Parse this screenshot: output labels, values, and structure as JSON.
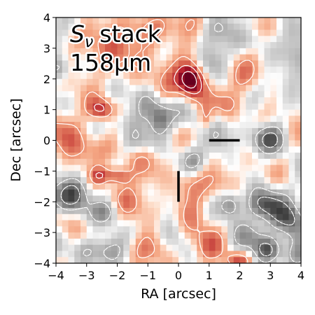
{
  "chart_data": {
    "type": "heatmap",
    "title_line1_symbol": "S",
    "title_line1_subscript": "ν",
    "title_line1_rest": "stack",
    "title_line2": "158μm",
    "xlabel": "RA [arcsec]",
    "ylabel": "Dec [arcsec]",
    "xlim": [
      -4,
      4
    ],
    "ylim": [
      -4,
      4
    ],
    "x_ticks": [
      -4,
      -3,
      -2,
      -1,
      0,
      1,
      2,
      3,
      4
    ],
    "y_ticks": [
      -4,
      -3,
      -2,
      -1,
      0,
      1,
      2,
      3,
      4
    ],
    "x_tick_labels": [
      "−4",
      "−3",
      "−2",
      "−1",
      "0",
      "1",
      "2",
      "3",
      "4"
    ],
    "y_tick_labels": [
      "−4",
      "−3",
      "−2",
      "−1",
      "0",
      "1",
      "2",
      "3",
      "4"
    ],
    "colormap": "RdGy_r",
    "grid": false,
    "positive_contours": "solid white",
    "negative_contours": "dashed white",
    "blobs": [
      {
        "x": 0.4,
        "y": 2.0,
        "amp": 3.4,
        "sx": 0.28,
        "sy": 0.38
      },
      {
        "x": -0.3,
        "y": 1.7,
        "amp": 1.1,
        "sx": 0.7,
        "sy": 0.6
      },
      {
        "x": -2.5,
        "y": 1.0,
        "amp": 2.3,
        "sx": 0.3,
        "sy": 0.25
      },
      {
        "x": -2.0,
        "y": -1.15,
        "amp": 2.1,
        "sx": 0.3,
        "sy": 0.2
      },
      {
        "x": -2.6,
        "y": -1.15,
        "amp": 1.6,
        "sx": 0.22,
        "sy": 0.2
      },
      {
        "x": 0.9,
        "y": 0.7,
        "amp": 1.6,
        "sx": 0.18,
        "sy": 0.3
      },
      {
        "x": -2.0,
        "y": 3.3,
        "amp": 1.8,
        "sx": 0.6,
        "sy": 0.45
      },
      {
        "x": 0.3,
        "y": 3.8,
        "amp": 1.6,
        "sx": 0.6,
        "sy": 0.35
      },
      {
        "x": 2.3,
        "y": 3.6,
        "amp": 1.2,
        "sx": 0.4,
        "sy": 0.3
      },
      {
        "x": 2.0,
        "y": 2.0,
        "amp": 1.1,
        "sx": 0.4,
        "sy": 0.4
      },
      {
        "x": 1.5,
        "y": 1.2,
        "amp": 0.9,
        "sx": 0.4,
        "sy": 0.3
      },
      {
        "x": -3.7,
        "y": 0.2,
        "amp": 1.1,
        "sx": 0.4,
        "sy": 0.6
      },
      {
        "x": -3.0,
        "y": -0.3,
        "amp": 1.0,
        "sx": 0.5,
        "sy": 0.4
      },
      {
        "x": -1.2,
        "y": -0.5,
        "amp": 0.8,
        "sx": 0.5,
        "sy": 0.4
      },
      {
        "x": -1.5,
        "y": -2.0,
        "amp": 1.2,
        "sx": 0.5,
        "sy": 0.5
      },
      {
        "x": -0.8,
        "y": -3.5,
        "amp": 1.0,
        "sx": 0.5,
        "sy": 0.4
      },
      {
        "x": 0.5,
        "y": -2.5,
        "amp": 1.2,
        "sx": 0.4,
        "sy": 0.5
      },
      {
        "x": 1.0,
        "y": -3.5,
        "amp": 1.1,
        "sx": 0.4,
        "sy": 0.4
      },
      {
        "x": 1.9,
        "y": -3.9,
        "amp": 1.8,
        "sx": 0.3,
        "sy": 0.2
      },
      {
        "x": 1.5,
        "y": -1.3,
        "amp": 0.9,
        "sx": 0.5,
        "sy": 0.35
      },
      {
        "x": 3.3,
        "y": 2.5,
        "amp": 0.8,
        "sx": 0.4,
        "sy": 0.4
      },
      {
        "x": 3.7,
        "y": 1.0,
        "amp": 0.6,
        "sx": 0.3,
        "sy": 0.5
      },
      {
        "x": -3.0,
        "y": 2.3,
        "amp": 0.8,
        "sx": 0.5,
        "sy": 0.4
      },
      {
        "x": -1.0,
        "y": 2.7,
        "amp": 0.7,
        "sx": 0.4,
        "sy": 0.4
      },
      {
        "x": -3.6,
        "y": -2.5,
        "amp": 0.7,
        "sx": 0.4,
        "sy": 0.4
      },
      {
        "x": 0.3,
        "y": -1.4,
        "amp": 0.8,
        "sx": 0.35,
        "sy": 0.4
      },
      {
        "x": -1.0,
        "y": 1.2,
        "amp": -1.7,
        "sx": 0.35,
        "sy": 0.4
      },
      {
        "x": -0.6,
        "y": 0.7,
        "amp": -1.9,
        "sx": 0.25,
        "sy": 0.35
      },
      {
        "x": 1.3,
        "y": 3.7,
        "amp": -1.6,
        "sx": 0.5,
        "sy": 0.4
      },
      {
        "x": 2.5,
        "y": 3.5,
        "amp": -0.9,
        "sx": 0.4,
        "sy": 0.3
      },
      {
        "x": 3.8,
        "y": 2.8,
        "amp": -1.2,
        "sx": 0.4,
        "sy": 0.4
      },
      {
        "x": 3.5,
        "y": 1.8,
        "amp": -0.9,
        "sx": 0.4,
        "sy": 0.5
      },
      {
        "x": -3.9,
        "y": 2.3,
        "amp": -1.6,
        "sx": 0.25,
        "sy": 0.3
      },
      {
        "x": -3.7,
        "y": -1.9,
        "amp": -1.9,
        "sx": 0.45,
        "sy": 0.4
      },
      {
        "x": -3.4,
        "y": -1.6,
        "amp": -1.2,
        "sx": 0.35,
        "sy": 0.35
      },
      {
        "x": -2.3,
        "y": -2.3,
        "amp": -1.6,
        "sx": 0.35,
        "sy": 0.3
      },
      {
        "x": -2.3,
        "y": -3.6,
        "amp": -1.3,
        "sx": 0.35,
        "sy": 0.3
      },
      {
        "x": -3.0,
        "y": -3.5,
        "amp": -0.9,
        "sx": 0.3,
        "sy": 0.3
      },
      {
        "x": -1.4,
        "y": -0.1,
        "amp": -0.9,
        "sx": 0.4,
        "sy": 0.3
      },
      {
        "x": 0.5,
        "y": -0.7,
        "amp": -1.0,
        "sx": 0.3,
        "sy": 0.3
      },
      {
        "x": 1.3,
        "y": 0.0,
        "amp": -0.9,
        "sx": 0.3,
        "sy": 0.4
      },
      {
        "x": 2.9,
        "y": 0.05,
        "amp": -2.0,
        "sx": 0.38,
        "sy": 0.32
      },
      {
        "x": 1.7,
        "y": -2.1,
        "amp": -1.9,
        "sx": 0.25,
        "sy": 0.3
      },
      {
        "x": 2.8,
        "y": -2.1,
        "amp": -2.4,
        "sx": 0.42,
        "sy": 0.35
      },
      {
        "x": 3.5,
        "y": -2.5,
        "amp": -1.5,
        "sx": 0.35,
        "sy": 0.3
      },
      {
        "x": 3.8,
        "y": -2.8,
        "amp": -1.6,
        "sx": 0.3,
        "sy": 0.4
      },
      {
        "x": 2.9,
        "y": -3.6,
        "amp": -2.3,
        "sx": 0.3,
        "sy": 0.28
      },
      {
        "x": 2.3,
        "y": -3.2,
        "amp": -1.1,
        "sx": 0.4,
        "sy": 0.35
      },
      {
        "x": 0.2,
        "y": 0.8,
        "amp": -0.8,
        "sx": 0.5,
        "sy": 0.4
      },
      {
        "x": 1.2,
        "y": 2.6,
        "amp": -0.9,
        "sx": 0.4,
        "sy": 0.4
      },
      {
        "x": -0.2,
        "y": -2.9,
        "amp": -0.8,
        "sx": 0.4,
        "sy": 0.4
      },
      {
        "x": 3.8,
        "y": -3.8,
        "amp": -0.9,
        "sx": 0.3,
        "sy": 0.3
      },
      {
        "x": 3.7,
        "y": 3.5,
        "amp": -0.7,
        "sx": 0.3,
        "sy": 0.3
      },
      {
        "x": -1.7,
        "y": 0.6,
        "amp": -0.6,
        "sx": 0.4,
        "sy": 0.3
      }
    ],
    "texture_amplitude": 0.45,
    "positive_levels": [
      1.0,
      2.0,
      3.0
    ],
    "negative_levels": [
      -1.0,
      -2.0
    ],
    "marker_horizontal_bar": {
      "x": [
        1.0,
        2.0
      ],
      "y": 0.0
    },
    "marker_vertical_bar": {
      "x": 0.0,
      "y": [
        -2.0,
        -1.0
      ]
    }
  }
}
